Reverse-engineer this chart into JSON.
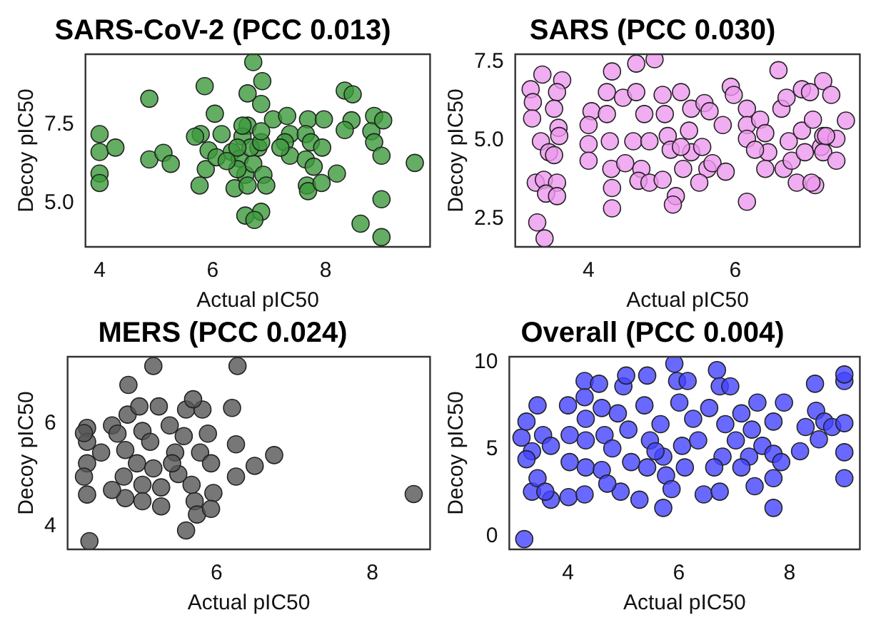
{
  "chart_data": [
    {
      "type": "scatter",
      "title": "SARS-CoV-2 (PCC 0.013)",
      "xlabel": "Actual pIC50",
      "ylabel": "Decoy pIC50",
      "xlim": [
        3.75,
        9.85
      ],
      "ylim": [
        3.6,
        9.75
      ],
      "xticks": [
        4,
        6,
        8
      ],
      "yticks": [
        {
          "value": 5,
          "label": "5.0"
        },
        7.5
      ],
      "grid": false,
      "legend": false,
      "marker": "circle",
      "series": [
        {
          "color": "#3c9a3c",
          "x": [
            4,
            4,
            4,
            4,
            4.28,
            4.88,
            4.88,
            5.13,
            5.26,
            5.86,
            5.79,
            5.69,
            5.77,
            5.88,
            5.93,
            6.04,
            6.07,
            6.34,
            6.39,
            6.62,
            6.72,
            6.88,
            6.86,
            6.62,
            6.53,
            6.48,
            6.58,
            6.62,
            6.72,
            6.81,
            6.67,
            6.44,
            6.53,
            6.9,
            6.95,
            6.58,
            6.86,
            6.74,
            6.44,
            6.86,
            7.07,
            7.32,
            7.37,
            7.28,
            7.37,
            7.69,
            7.65,
            7.74,
            7.65,
            7.79,
            7.67,
            7.69,
            7.93,
            7.97,
            7.94,
            8.2,
            8.34,
            8.48,
            8.46,
            8.34,
            8.86,
            8.81,
            8.86,
            9.02,
            8.99,
            8.99,
            8.62,
            8.99,
            9.58,
            7.2,
            6.16,
            6.25,
            6.86
          ],
          "values": [
            7.2,
            6.63,
            5.94,
            5.64,
            6.77,
            8.33,
            6.39,
            6.6,
            6.25,
            8.73,
            7.2,
            7.12,
            5.56,
            6.08,
            6.68,
            7.85,
            6.46,
            6.63,
            5.47,
            8.5,
            9.5,
            8.89,
            8.16,
            7.47,
            7.12,
            6.42,
            5.9,
            5.56,
            6.25,
            6.77,
            6.77,
            6.08,
            7.47,
            5.9,
            5.56,
            4.6,
            4.72,
            4.46,
            6.77,
            6.94,
            7.67,
            7.78,
            7.2,
            6.94,
            6.51,
            7.67,
            7.2,
            6.94,
            6.39,
            6.16,
            5.56,
            5.38,
            5.64,
            7.67,
            6.77,
            5.94,
            8.59,
            8.47,
            7.64,
            7.33,
            7.78,
            7.29,
            6.94,
            7.64,
            6.51,
            5.12,
            4.34,
            3.91,
            6.28,
            6.77,
            7.2,
            6.34,
            7.29
          ]
        }
      ]
    },
    {
      "type": "scatter",
      "title": "SARS (PCC 0.030)",
      "xlabel": "Actual pIC50",
      "ylabel": "Decoy pIC50",
      "xlim": [
        3.0,
        7.7
      ],
      "ylim": [
        1.6,
        7.75
      ],
      "xticks": [
        4,
        6
      ],
      "yticks": [
        2.5,
        {
          "value": 5,
          "label": "5.0"
        },
        7.5
      ],
      "grid": false,
      "legend": false,
      "marker": "circle",
      "series": [
        {
          "color": "#ee99ee",
          "x": [
            3.21,
            3.24,
            3.23,
            3.37,
            3.64,
            3.57,
            3.53,
            3.59,
            3.35,
            3.46,
            3.53,
            3.6,
            3.28,
            3.39,
            3.57,
            3.42,
            3.57,
            3.3,
            3.4,
            4.04,
            4,
            4,
            4,
            4.25,
            4.25,
            4.29,
            4.31,
            4.32,
            4.32,
            4.32,
            4.47,
            4.61,
            4.5,
            4.65,
            4.9,
            4.65,
            4.76,
            4.83,
            4.72,
            4.68,
            4.83,
            5.01,
            5.01,
            5.04,
            5.08,
            5.12,
            5.26,
            5.4,
            5.37,
            5.4,
            5.29,
            5.19,
            5.15,
            5.58,
            5.55,
            5.62,
            5.51,
            5.69,
            5.87,
            5.83,
            5.65,
            5.94,
            5.98,
            6.16,
            6.16,
            6.16,
            6.16,
            6.34,
            6.41,
            6.59,
            6.45,
            6.41,
            6.63,
            6.7,
            6.73,
            6.66,
            6.77,
            6.84,
            6.91,
            6.91,
            6.95,
            7.06,
            7.02,
            7.17,
            7.2,
            7.2,
            7.09,
            7.04,
            7.2,
            7.31,
            7.38,
            7.38,
            7.51,
            7.24,
            6.27,
            5.26
          ],
          "values": [
            6.63,
            6.22,
            5.7,
            7.1,
            6.92,
            6.54,
            6.01,
            5.4,
            4.97,
            4.62,
            4.53,
            5.14,
            3.65,
            3.74,
            3.65,
            3.3,
            3.22,
            2.38,
            1.87,
            5.93,
            5.49,
            4.88,
            4.35,
            6.54,
            5.84,
            4.97,
            4.09,
            3.48,
            2.83,
            7.2,
            6.36,
            4.97,
            4.27,
            7.45,
            7.59,
            6.54,
            5.84,
            4.97,
            4.09,
            3.71,
            3.65,
            3.74,
            6.45,
            5.84,
            5.14,
            4.7,
            6.54,
            6.01,
            5.31,
            4.62,
            4.09,
            3.22,
            2.95,
            6.19,
            4.79,
            4.09,
            3.65,
            4.27,
            4.0,
            5.49,
            5.93,
            6.71,
            6.45,
            3.04,
            6.01,
            5.49,
            5.05,
            5.66,
            5.23,
            7.24,
            4.62,
            4.09,
            6.01,
            6.36,
            4.97,
            4.09,
            4.35,
            3.65,
            6.63,
            5.31,
            4.62,
            5.66,
            6.54,
            4.79,
            5.14,
            4.62,
            3.57,
            3.65,
            6.89,
            6.45,
            4.35,
            5.05,
            5.63,
            5.14,
            4.7,
            4.79
          ]
        }
      ]
    },
    {
      "type": "scatter",
      "title": "MERS (PCC 0.024)",
      "xlabel": "Actual pIC50",
      "ylabel": "Decoy pIC50",
      "xlim": [
        4.09,
        8.74
      ],
      "ylim": [
        3.55,
        7.31
      ],
      "xticks": [
        6,
        8
      ],
      "yticks": [
        4,
        6
      ],
      "grid": false,
      "legend": false,
      "marker": "circle",
      "series": [
        {
          "color": "#555555",
          "x": [
            4.34,
            4.34,
            4.34,
            4.34,
            4.3,
            4.37,
            4.3,
            4.52,
            4.66,
            4.73,
            4.87,
            4.86,
            4.83,
            4.81,
            4.83,
            5.01,
            5.05,
            4.98,
            5.05,
            5.05,
            5.19,
            5.26,
            5.15,
            5.19,
            5.29,
            5.4,
            5.47,
            5.51,
            5.58,
            5.61,
            5.61,
            5.72,
            5.68,
            5.79,
            5.82,
            5.89,
            5.93,
            5.96,
            5.75,
            5.93,
            6.2,
            6.25,
            6.25,
            6.27,
            6.49,
            6.74,
            8.53,
            5.7,
            5.43,
            4.66,
            5.29
          ],
          "values": [
            5.92,
            5.65,
            5.23,
            4.62,
            4.97,
            3.71,
            5.82,
            5.44,
            5.97,
            5.81,
            6.76,
            6.18,
            5.49,
            4.97,
            4.55,
            6.34,
            5.86,
            5.23,
            4.81,
            4.49,
            7.13,
            6.34,
            5.65,
            5.13,
            4.76,
            5.97,
            5.44,
            5.02,
            5.76,
            6.28,
            3.92,
            4.49,
            4.81,
            5.44,
            6.28,
            5.81,
            5.23,
            4.65,
            4.23,
            4.34,
            6.31,
            5.6,
            4.97,
            7.13,
            5.18,
            5.39,
            4.63,
            6.48,
            5.23,
            4.71,
            4.39
          ]
        }
      ]
    },
    {
      "type": "scatter",
      "title": "Overall (PCC 0.004)",
      "xlabel": "Actual pIC50",
      "ylabel": "Decoy pIC50",
      "xlim": [
        2.94,
        9.27
      ],
      "ylim": [
        -0.74,
        10.31
      ],
      "xticks": [
        4,
        6,
        8
      ],
      "yticks": [
        0,
        5,
        10
      ],
      "grid": false,
      "legend": false,
      "marker": "circle",
      "series": [
        {
          "color": "#4444ff",
          "x": [
            3.21,
            3.16,
            3.25,
            3.35,
            3.45,
            3.55,
            3.35,
            3.45,
            3.69,
            3.59,
            3.25,
            3.69,
            4.0,
            4.03,
            4.03,
            4.01,
            4.3,
            4.3,
            4.32,
            4.32,
            4.32,
            4.3,
            4.56,
            4.61,
            4.66,
            4.61,
            4.8,
            4.9,
            5.0,
            5.05,
            5.09,
            5.14,
            4.95,
            5.29,
            5.43,
            5.38,
            5.48,
            5.43,
            5.67,
            5.72,
            5.72,
            5.77,
            5.87,
            5.92,
            5.97,
            6.01,
            6.06,
            6.11,
            6.26,
            6.35,
            6.45,
            6.74,
            6.55,
            6.69,
            6.74,
            6.93,
            6.84,
            6.79,
            7.03,
            7.13,
            7.27,
            7.32,
            7.37,
            7.42,
            7.51,
            7.71,
            7.71,
            7.71,
            7.71,
            7.85,
            7.9,
            8.19,
            8.29,
            8.48,
            8.53,
            8.46,
            8.63,
            8.77,
            8.99,
            8.99,
            8.99,
            8.99,
            8.99,
            6.16,
            5.58,
            4.71,
            6.64,
            7.13
          ],
          "values": [
            -0.15,
            5.67,
            6.59,
            4.89,
            7.52,
            5.82,
            2.57,
            3.34,
            2.11,
            2.57,
            4.43,
            5.2,
            7.52,
            5.82,
            4.27,
            2.26,
            8.92,
            7.99,
            6.75,
            5.51,
            3.96,
            2.41,
            8.76,
            7.37,
            5.82,
            3.81,
            5.05,
            7.06,
            8.61,
            9.23,
            6.13,
            4.27,
            2.57,
            2.11,
            9.23,
            7.52,
            5.51,
            3.96,
            6.44,
            4.58,
            1.64,
            3.5,
            2.72,
            9.91,
            8.92,
            7.68,
            5.2,
            3.96,
            6.75,
            5.51,
            2.41,
            2.57,
            7.37,
            9.54,
            8.61,
            8.61,
            6.44,
            4.58,
            5.51,
            7.06,
            4.58,
            6.13,
            2.88,
            7.68,
            5.2,
            6.59,
            4.74,
            3.34,
            1.64,
            4.27,
            7.68,
            4.89,
            6.28,
            7.21,
            5.57,
            8.76,
            6.59,
            6.28,
            6.5,
            8.92,
            9.29,
            4.83,
            3.34,
            8.92,
            4.89,
            3.03,
            3.96,
            3.96
          ]
        }
      ]
    }
  ]
}
